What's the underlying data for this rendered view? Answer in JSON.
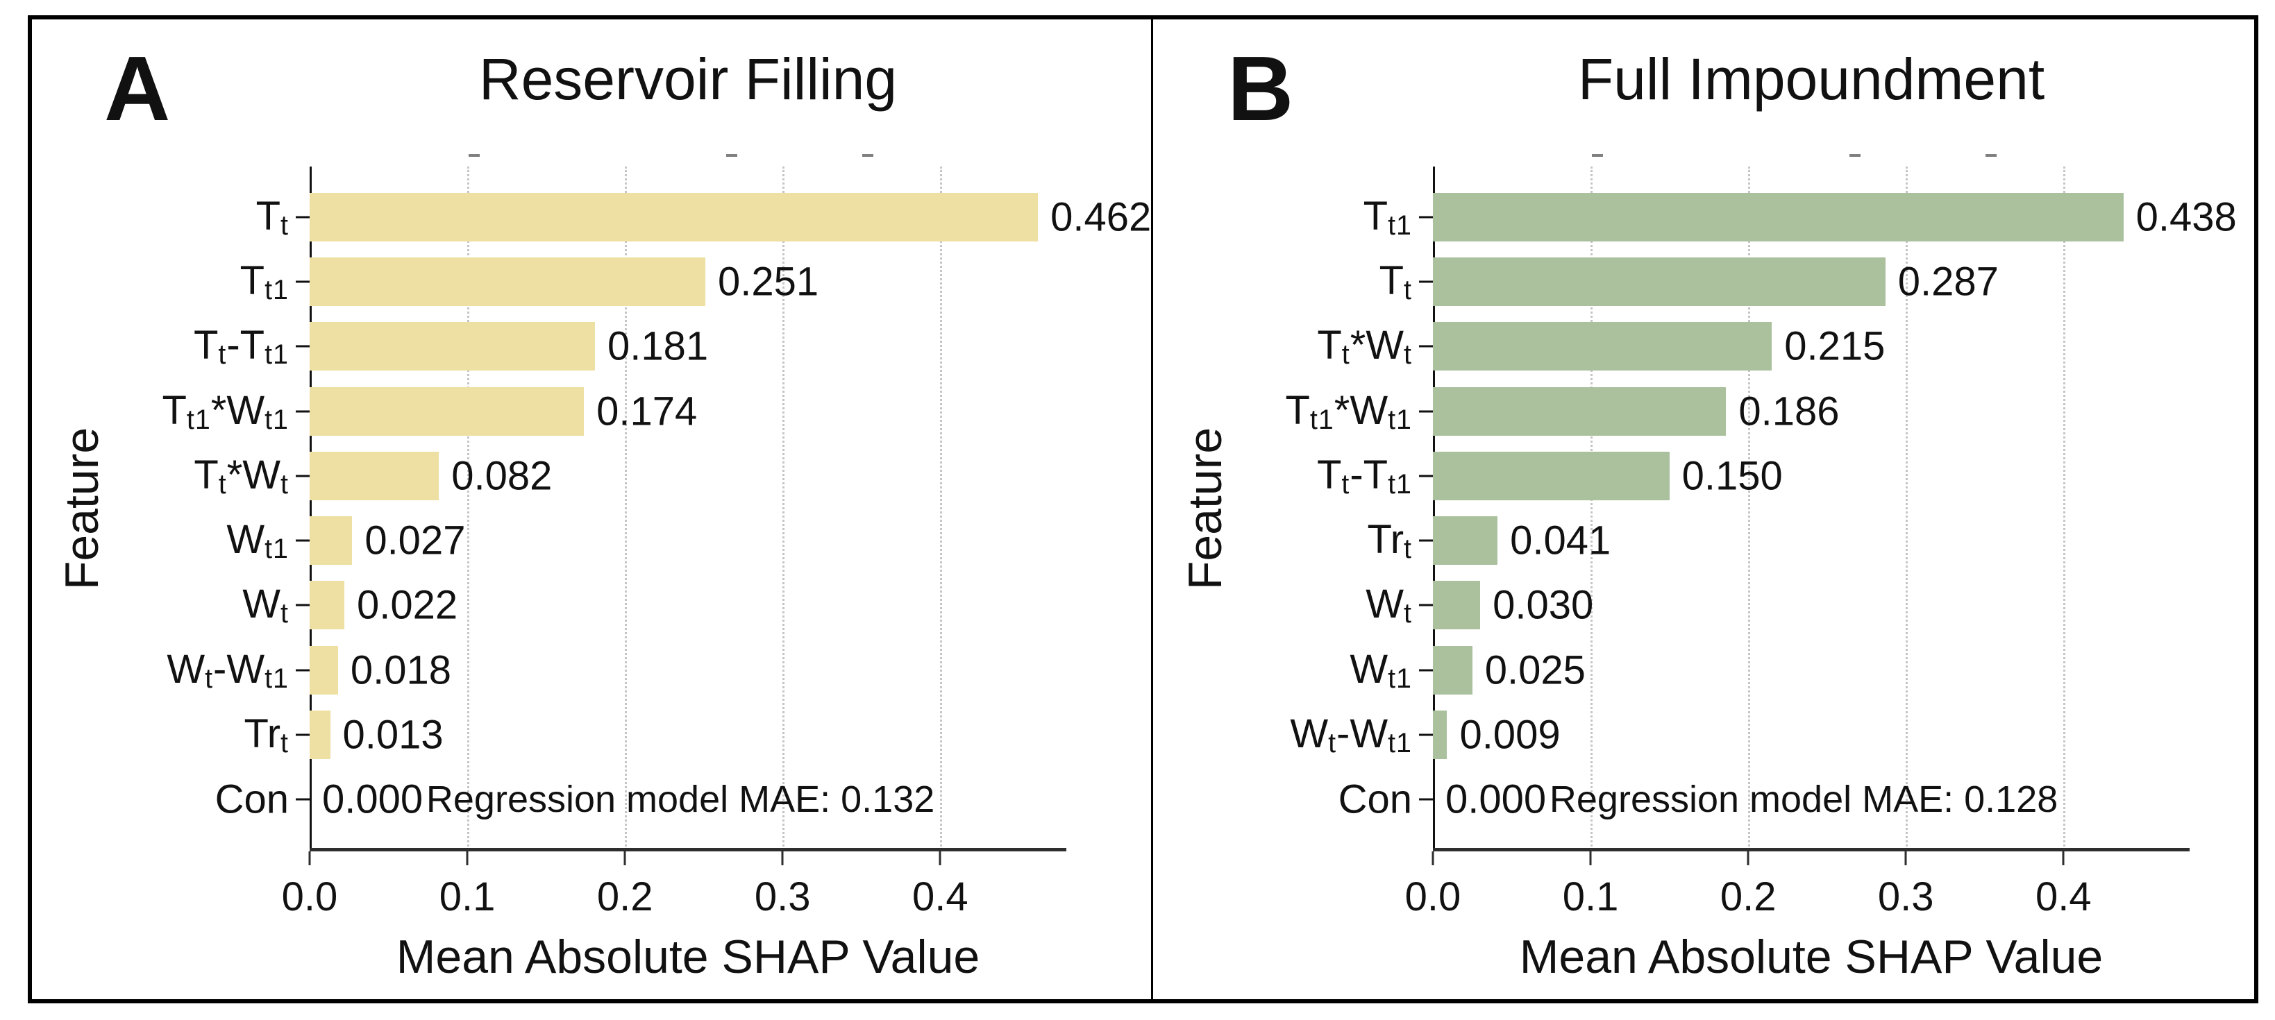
{
  "figure": {
    "background": "#ffffff",
    "border_color": "#000000",
    "text_color": "#111111",
    "gridline_color": "#c5c5c5",
    "axis_color": "#2e2e2e"
  },
  "chart_data": [
    {
      "type": "bar",
      "orientation": "horizontal",
      "panel_label": "A",
      "title": "Reservoir Filling",
      "xlabel": "Mean Absolute SHAP Value",
      "ylabel": "Feature",
      "annotation": "Regression model MAE: 0.132",
      "bar_color": "#eedfa3",
      "grid": "dotted-vertical",
      "legend": "none",
      "xlim": [
        0,
        0.48
      ],
      "xticks": [
        {
          "value": 0.0,
          "label": "0.0"
        },
        {
          "value": 0.1,
          "label": "0.1"
        },
        {
          "value": 0.2,
          "label": "0.2"
        },
        {
          "value": 0.3,
          "label": "0.3"
        },
        {
          "value": 0.4,
          "label": "0.4"
        }
      ],
      "features": [
        {
          "label": "T[t]",
          "value": 0.462
        },
        {
          "label": "T[t1]",
          "value": 0.251
        },
        {
          "label": "T[t]-T[t1]",
          "value": 0.181
        },
        {
          "label": "T[t1]*W[t1]",
          "value": 0.174
        },
        {
          "label": "T[t]*W[t]",
          "value": 0.082
        },
        {
          "label": "W[t1]",
          "value": 0.027
        },
        {
          "label": "W[t]",
          "value": 0.022
        },
        {
          "label": "W[t]-W[t1]",
          "value": 0.018
        },
        {
          "label": "Tr[t]",
          "value": 0.013
        },
        {
          "label": "Con",
          "value": 0.0
        }
      ]
    },
    {
      "type": "bar",
      "orientation": "horizontal",
      "panel_label": "B",
      "title": "Full Impoundment",
      "xlabel": "Mean Absolute SHAP Value",
      "ylabel": "Feature",
      "annotation": "Regression model MAE: 0.128",
      "bar_color": "#abc19e",
      "grid": "dotted-vertical",
      "legend": "none",
      "xlim": [
        0,
        0.48
      ],
      "xticks": [
        {
          "value": 0.0,
          "label": "0.0"
        },
        {
          "value": 0.1,
          "label": "0.1"
        },
        {
          "value": 0.2,
          "label": "0.2"
        },
        {
          "value": 0.3,
          "label": "0.3"
        },
        {
          "value": 0.4,
          "label": "0.4"
        }
      ],
      "features": [
        {
          "label": "T[t1]",
          "value": 0.438
        },
        {
          "label": "T[t]",
          "value": 0.287
        },
        {
          "label": "T[t]*W[t]",
          "value": 0.215
        },
        {
          "label": "T[t1]*W[t1]",
          "value": 0.186
        },
        {
          "label": "T[t]-T[t1]",
          "value": 0.15
        },
        {
          "label": "Tr[t]",
          "value": 0.041
        },
        {
          "label": "W[t]",
          "value": 0.03
        },
        {
          "label": "W[t1]",
          "value": 0.025
        },
        {
          "label": "W[t]-W[t1]",
          "value": 0.009
        },
        {
          "label": "Con",
          "value": 0.0
        }
      ]
    }
  ]
}
